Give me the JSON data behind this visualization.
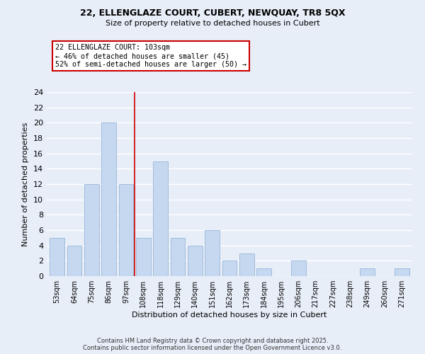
{
  "title_line1": "22, ELLENGLAZE COURT, CUBERT, NEWQUAY, TR8 5QX",
  "title_line2": "Size of property relative to detached houses in Cubert",
  "xlabel": "Distribution of detached houses by size in Cubert",
  "ylabel": "Number of detached properties",
  "bar_labels": [
    "53sqm",
    "64sqm",
    "75sqm",
    "86sqm",
    "97sqm",
    "108sqm",
    "118sqm",
    "129sqm",
    "140sqm",
    "151sqm",
    "162sqm",
    "173sqm",
    "184sqm",
    "195sqm",
    "206sqm",
    "217sqm",
    "227sqm",
    "238sqm",
    "249sqm",
    "260sqm",
    "271sqm"
  ],
  "bar_values": [
    5,
    4,
    12,
    20,
    12,
    5,
    15,
    5,
    4,
    6,
    2,
    3,
    1,
    0,
    2,
    0,
    0,
    0,
    1,
    0,
    1
  ],
  "bar_color": "#c5d8f0",
  "bar_edge_color": "#a0bcdc",
  "ylim": [
    0,
    24
  ],
  "yticks": [
    0,
    2,
    4,
    6,
    8,
    10,
    12,
    14,
    16,
    18,
    20,
    22,
    24
  ],
  "vline_x_index": 4.5,
  "vline_color": "#cc0000",
  "annotation_title": "22 ELLENGLAZE COURT: 103sqm",
  "annotation_line2": "← 46% of detached houses are smaller (45)",
  "annotation_line3": "52% of semi-detached houses are larger (50) →",
  "footer_line1": "Contains HM Land Registry data © Crown copyright and database right 2025.",
  "footer_line2": "Contains public sector information licensed under the Open Government Licence v3.0.",
  "background_color": "#e8eef8",
  "grid_color": "#ffffff"
}
